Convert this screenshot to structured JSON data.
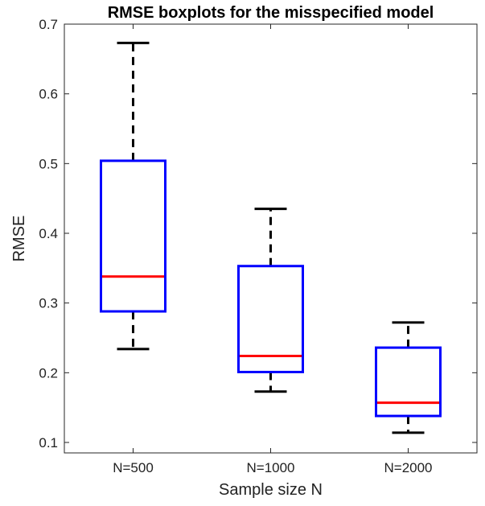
{
  "chart_data": {
    "type": "boxplot",
    "title": "RMSE boxplots for the misspecified model",
    "xlabel": "Sample size N",
    "ylabel": "RMSE",
    "categories": [
      "N=500",
      "N=1000",
      "N=2000"
    ],
    "ylim": [
      0.085,
      0.7
    ],
    "yticks": [
      0.1,
      0.2,
      0.3,
      0.4,
      0.5,
      0.6,
      0.7
    ],
    "ytick_labels": [
      "0.1",
      "0.2",
      "0.3",
      "0.4",
      "0.5",
      "0.6",
      "0.7"
    ],
    "grid": false,
    "series": [
      {
        "category": "N=500",
        "whisker_low": 0.234,
        "q1": 0.288,
        "median": 0.338,
        "q3": 0.504,
        "whisker_high": 0.673
      },
      {
        "category": "N=1000",
        "whisker_low": 0.173,
        "q1": 0.201,
        "median": 0.224,
        "q3": 0.353,
        "whisker_high": 0.435
      },
      {
        "category": "N=2000",
        "whisker_low": 0.114,
        "q1": 0.138,
        "median": 0.157,
        "q3": 0.236,
        "whisker_high": 0.272
      }
    ],
    "colors": {
      "box": "#0000FF",
      "median": "#FF0000",
      "whisker": "#000000"
    }
  }
}
